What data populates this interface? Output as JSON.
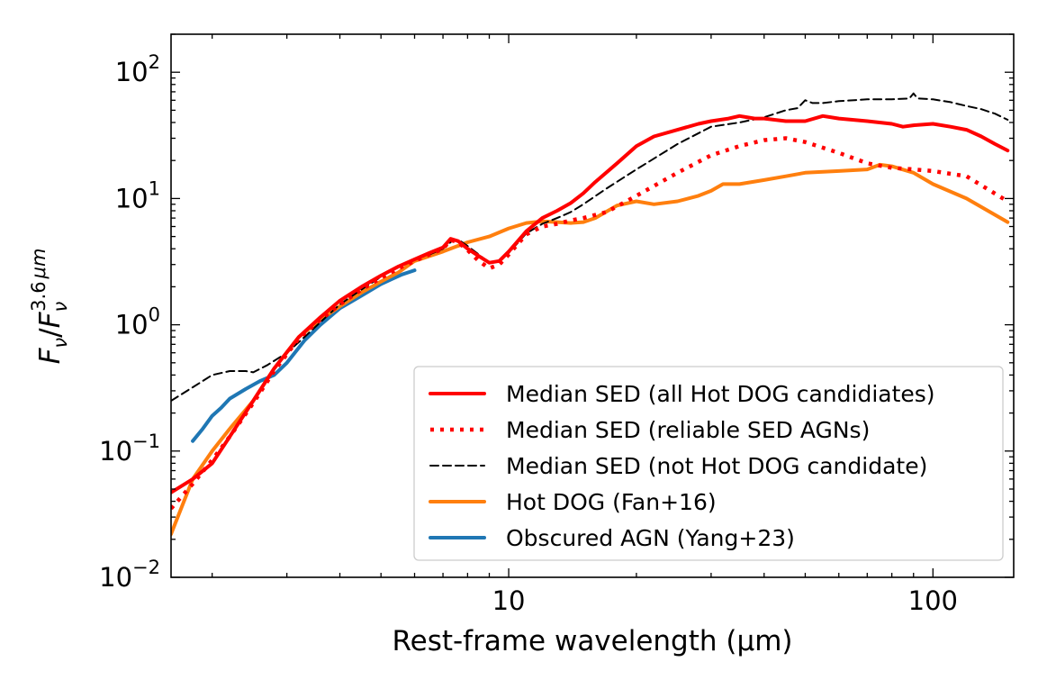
{
  "chart_data": {
    "type": "line",
    "title": "",
    "xlabel": "Rest-frame wavelength (μm)",
    "ylabel": "Fν/Fν^3.6μm",
    "xscale": "log",
    "yscale": "log",
    "xlim": [
      1.6,
      155
    ],
    "ylim": [
      0.01,
      200
    ],
    "x_tick_labels": [
      {
        "value": 10,
        "label": "10"
      },
      {
        "value": 100,
        "label": "100"
      }
    ],
    "y_tick_labels": [
      {
        "value": 0.01,
        "base": "10",
        "exp": "−2"
      },
      {
        "value": 0.1,
        "base": "10",
        "exp": "−1"
      },
      {
        "value": 1,
        "base": "10",
        "exp": "0"
      },
      {
        "value": 10,
        "base": "10",
        "exp": "1"
      },
      {
        "value": 100,
        "base": "10",
        "exp": "2"
      }
    ],
    "grid": false,
    "legend_position": "lower-right",
    "series": [
      {
        "name": "Median SED (all Hot DOG candidiates)",
        "color": "#ff0000",
        "style": "solid",
        "x": [
          1.6,
          1.8,
          2.0,
          2.2,
          2.5,
          2.8,
          3.2,
          3.6,
          4.0,
          4.5,
          5.0,
          5.5,
          6.0,
          6.5,
          7.0,
          7.3,
          7.6,
          8.0,
          8.5,
          9.0,
          9.5,
          10.0,
          11.0,
          12.0,
          13.0,
          14.0,
          15.0,
          16.0,
          18.0,
          20.0,
          22.0,
          25.0,
          28.0,
          30.0,
          33.0,
          35.0,
          38.0,
          40.0,
          45.0,
          50.0,
          55.0,
          60.0,
          70.0,
          80.0,
          85.0,
          90.0,
          100.0,
          110.0,
          120.0,
          130.0,
          140.0,
          150.0
        ],
        "y": [
          0.047,
          0.06,
          0.08,
          0.13,
          0.25,
          0.45,
          0.8,
          1.15,
          1.55,
          2.0,
          2.45,
          2.9,
          3.3,
          3.7,
          4.1,
          4.8,
          4.6,
          4.0,
          3.5,
          3.1,
          3.2,
          3.8,
          5.5,
          7.0,
          8.0,
          9.2,
          11.0,
          13.5,
          19.0,
          26.0,
          31.0,
          35.0,
          39.0,
          41.0,
          43.0,
          45.0,
          43.0,
          43.0,
          41.0,
          41.0,
          45.0,
          43.0,
          41.0,
          39.0,
          37.0,
          38.0,
          39.0,
          37.0,
          35.0,
          31.0,
          27.0,
          24.0
        ]
      },
      {
        "name": "Median SED (reliable SED AGNs)",
        "color": "#ff0000",
        "style": "dotted",
        "x": [
          1.6,
          1.8,
          2.0,
          2.2,
          2.5,
          2.8,
          3.2,
          3.6,
          4.0,
          4.5,
          5.0,
          5.5,
          6.0,
          6.5,
          7.0,
          7.3,
          7.6,
          8.0,
          8.5,
          9.0,
          9.5,
          10.0,
          11.0,
          12.0,
          13.0,
          14.0,
          15.0,
          17.0,
          20.0,
          25.0,
          30.0,
          35.0,
          40.0,
          45.0,
          50.0,
          60.0,
          70.0,
          80.0,
          90.0,
          100.0,
          120.0,
          150.0
        ],
        "y": [
          0.035,
          0.055,
          0.085,
          0.13,
          0.24,
          0.43,
          0.78,
          1.1,
          1.45,
          1.9,
          2.35,
          2.8,
          3.2,
          3.6,
          4.0,
          4.7,
          4.5,
          3.9,
          3.2,
          2.8,
          3.0,
          3.6,
          5.2,
          6.0,
          6.3,
          6.7,
          7.0,
          7.8,
          10.5,
          16.0,
          22.0,
          26.0,
          29.0,
          30.0,
          28.0,
          23.0,
          19.0,
          17.5,
          17.0,
          16.5,
          15.0,
          9.5
        ]
      },
      {
        "name": "Median SED (not Hot DOG candidate)",
        "color": "#000000",
        "style": "dashed",
        "x": [
          1.6,
          1.8,
          2.0,
          2.2,
          2.4,
          2.5,
          2.7,
          3.0,
          3.3,
          3.6,
          4.0,
          4.5,
          5.0,
          5.5,
          6.0,
          6.5,
          7.0,
          7.4,
          7.7,
          8.0,
          8.5,
          9.0,
          9.5,
          10.0,
          11.0,
          12.0,
          13.0,
          14.0,
          15.0,
          17.0,
          20.0,
          25.0,
          30.0,
          35.0,
          40.0,
          45.0,
          48.0,
          50.0,
          52.0,
          55.0,
          60.0,
          70.0,
          80.0,
          88.0,
          90.0,
          92.0,
          100.0,
          110.0,
          120.0,
          130.0,
          140.0,
          150.0
        ],
        "y": [
          0.25,
          0.32,
          0.4,
          0.43,
          0.43,
          0.42,
          0.48,
          0.6,
          0.8,
          1.05,
          1.45,
          1.9,
          2.4,
          2.9,
          3.3,
          3.6,
          4.0,
          4.7,
          4.6,
          4.2,
          3.6,
          3.1,
          3.2,
          3.7,
          5.3,
          6.3,
          7.0,
          7.8,
          9.0,
          12.0,
          17.0,
          27.0,
          37.0,
          40.0,
          44.0,
          50.0,
          52.0,
          60.0,
          57.0,
          57.0,
          59.0,
          61.0,
          61.0,
          62.0,
          68.0,
          62.0,
          61.0,
          58.0,
          54.0,
          51.0,
          47.0,
          42.0
        ]
      },
      {
        "name": "Hot DOG (Fan+16)",
        "color": "#ff7f0e",
        "style": "solid",
        "x": [
          1.6,
          1.8,
          2.0,
          2.2,
          2.5,
          2.8,
          3.2,
          3.6,
          4.0,
          4.5,
          5.0,
          5.5,
          6.0,
          7.0,
          8.0,
          9.0,
          10.0,
          11.0,
          12.0,
          13.0,
          14.0,
          15.0,
          16.0,
          18.0,
          20.0,
          22.0,
          25.0,
          28.0,
          30.0,
          32.0,
          35.0,
          40.0,
          45.0,
          50.0,
          60.0,
          70.0,
          75.0,
          80.0,
          90.0,
          100.0,
          120.0,
          150.0
        ],
        "y": [
          0.022,
          0.06,
          0.1,
          0.15,
          0.25,
          0.45,
          0.8,
          1.1,
          1.4,
          1.8,
          2.2,
          2.6,
          3.2,
          3.8,
          4.5,
          5.0,
          5.8,
          6.4,
          6.6,
          6.5,
          6.4,
          6.5,
          7.0,
          8.8,
          9.5,
          9.0,
          9.5,
          10.5,
          11.5,
          13.0,
          13.0,
          14.0,
          15.0,
          16.0,
          16.5,
          17.0,
          18.5,
          18.0,
          16.0,
          13.0,
          10.0,
          6.5
        ]
      },
      {
        "name": "Obscured AGN (Yang+23)",
        "color": "#1f77b4",
        "style": "solid",
        "x": [
          1.8,
          1.9,
          2.0,
          2.1,
          2.2,
          2.4,
          2.6,
          2.8,
          3.0,
          3.3,
          3.6,
          4.0,
          4.5,
          5.0,
          5.3,
          5.6,
          6.0
        ],
        "y": [
          0.12,
          0.15,
          0.19,
          0.22,
          0.26,
          0.31,
          0.36,
          0.4,
          0.5,
          0.75,
          1.0,
          1.35,
          1.7,
          2.1,
          2.3,
          2.5,
          2.7
        ]
      }
    ]
  }
}
